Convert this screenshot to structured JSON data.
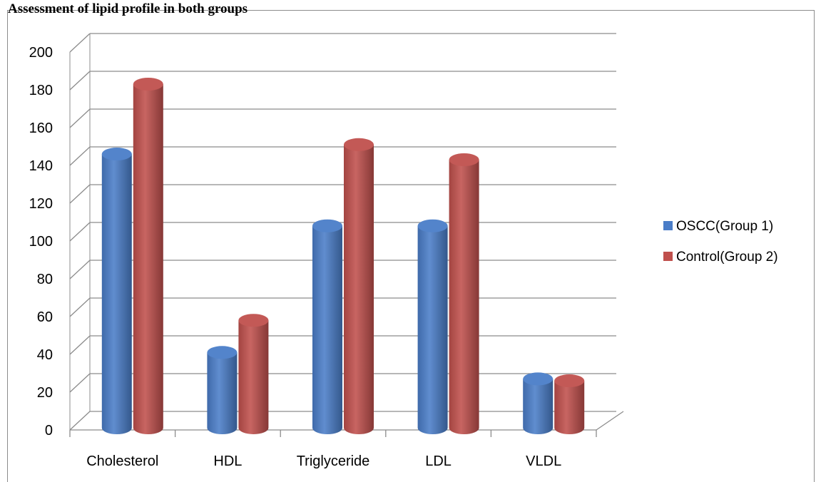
{
  "page_title": "Assessment of lipid profile in both groups",
  "chart_data": {
    "type": "bar",
    "categories": [
      "Cholesterol",
      "HDL",
      "Triglyceride",
      "LDL",
      "VLDL"
    ],
    "series": [
      {
        "name": "OSCC(Group 1)",
        "values": [
          143,
          38,
          105,
          105,
          24
        ],
        "color": "#4a7dc8"
      },
      {
        "name": "Control(Group 2)",
        "values": [
          180,
          55,
          148,
          140,
          23
        ],
        "color": "#c0504d"
      }
    ],
    "ylim": [
      0,
      200
    ],
    "yticks": [
      0,
      20,
      40,
      60,
      80,
      100,
      120,
      140,
      160,
      180,
      200
    ],
    "grid": true,
    "legend_position": "right",
    "style": "3d-cylinder"
  }
}
